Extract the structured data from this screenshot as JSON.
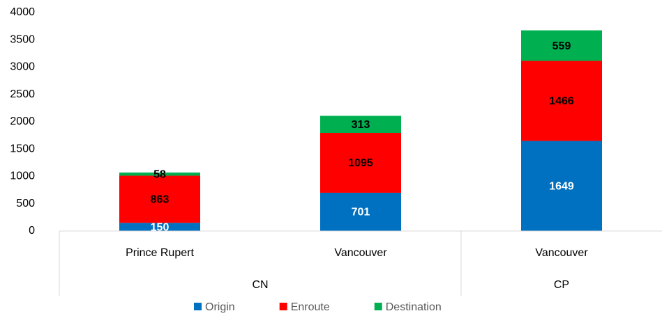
{
  "chart_data": {
    "type": "stacked_bar",
    "groups": [
      {
        "label": "CN",
        "categories": [
          "Prince Rupert",
          "Vancouver"
        ]
      },
      {
        "label": "CP",
        "categories": [
          "Vancouver"
        ]
      }
    ],
    "series": [
      {
        "name": "Origin",
        "color": "#0070c0",
        "label_color": "#ffffff",
        "values": [
          150,
          701,
          1649
        ]
      },
      {
        "name": "Enroute",
        "color": "#ff0000",
        "label_color": "#000000",
        "values": [
          863,
          1095,
          1466
        ]
      },
      {
        "name": "Destination",
        "color": "#00b050",
        "label_color": "#000000",
        "values": [
          58,
          313,
          559
        ]
      }
    ],
    "ylim": [
      0,
      4000
    ],
    "yticks": [
      0,
      500,
      1000,
      1500,
      2000,
      2500,
      3000,
      3500,
      4000
    ],
    "grid": false,
    "legend": "bottom"
  }
}
